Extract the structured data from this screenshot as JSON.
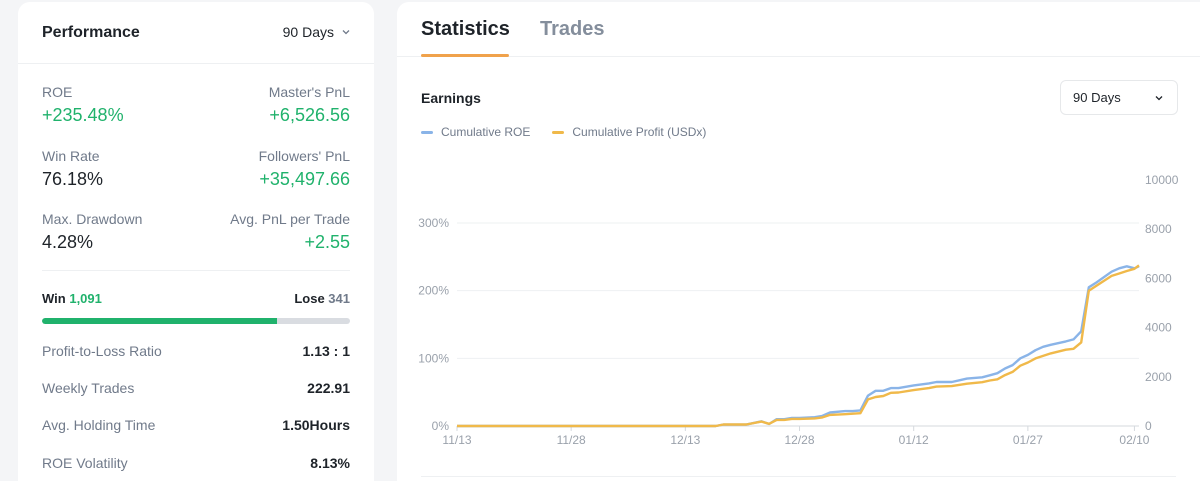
{
  "performance": {
    "title": "Performance",
    "period": "90 Days",
    "stats": {
      "roe_label": "ROE",
      "roe_value": "+235.48%",
      "master_pnl_label": "Master's PnL",
      "master_pnl_value": "+6,526.56",
      "win_rate_label": "Win Rate",
      "win_rate_value": "76.18%",
      "followers_pnl_label": "Followers' PnL",
      "followers_pnl_value": "+35,497.66",
      "max_drawdown_label": "Max. Drawdown",
      "max_drawdown_value": "4.28%",
      "avg_pnl_label": "Avg. PnL per Trade",
      "avg_pnl_value": "+2.55"
    },
    "win_label": "Win",
    "win_count": "1,091",
    "lose_label": "Lose",
    "lose_count": "341",
    "win_fraction": 0.762,
    "rows": [
      {
        "label": "Profit-to-Loss Ratio",
        "value": "1.13 : 1"
      },
      {
        "label": "Weekly Trades",
        "value": "222.91"
      },
      {
        "label": "Avg. Holding Time",
        "value": "1.50Hours"
      },
      {
        "label": "ROE Volatility",
        "value": "8.13%"
      }
    ]
  },
  "tabs": {
    "statistics": "Statistics",
    "trades": "Trades"
  },
  "earnings": {
    "title": "Earnings",
    "period": "90 Days",
    "legend_roe": "Cumulative ROE",
    "legend_profit": "Cumulative Profit (USDx)"
  },
  "colors": {
    "green": "#20b26c",
    "roe_line": "#8ab4e8",
    "profit_line": "#f0b94a",
    "tab_accent": "#f0a24b"
  },
  "chart_data": {
    "type": "line",
    "x_ticks": [
      "11/13",
      "11/28",
      "12/13",
      "12/28",
      "01/12",
      "01/27",
      "02/10"
    ],
    "y_left_ticks": [
      "0%",
      "100%",
      "200%",
      "300%"
    ],
    "y_right_ticks": [
      "0",
      "2000",
      "4000",
      "6000",
      "8000",
      "10000"
    ],
    "y_left_range": [
      0,
      300
    ],
    "y_right_range": [
      0,
      10000
    ],
    "legend_position": "top-left",
    "grid": "horizontal",
    "series": [
      {
        "name": "Cumulative ROE",
        "axis": "left",
        "x": [
          0,
          34,
          35,
          38,
          40,
          41,
          42,
          43,
          44,
          45,
          47,
          48,
          49,
          51,
          52,
          53,
          54,
          55,
          56,
          57,
          58,
          60,
          62,
          63,
          65,
          67,
          69,
          70,
          71,
          72,
          73,
          74,
          75,
          76,
          77,
          78,
          80,
          81,
          82,
          83,
          84,
          86,
          87,
          88,
          89,
          89.6
        ],
        "values": [
          0,
          0,
          2,
          2,
          7,
          3,
          10,
          10,
          12,
          12,
          13,
          15,
          20,
          22,
          22,
          23,
          45,
          52,
          52,
          56,
          56,
          60,
          63,
          65,
          65,
          70,
          72,
          75,
          78,
          85,
          90,
          100,
          105,
          112,
          117,
          120,
          125,
          128,
          140,
          205,
          212,
          228,
          233,
          236,
          233,
          236
        ]
      },
      {
        "name": "Cumulative Profit (USDx)",
        "axis": "right",
        "x": [
          0,
          34,
          35,
          38,
          40,
          41,
          42,
          43,
          44,
          45,
          47,
          48,
          49,
          51,
          52,
          53,
          54,
          55,
          56,
          57,
          58,
          60,
          62,
          63,
          65,
          67,
          69,
          70,
          71,
          72,
          73,
          74,
          75,
          76,
          77,
          78,
          80,
          81,
          82,
          83,
          84,
          86,
          87,
          88,
          89,
          89.6
        ],
        "values": [
          0,
          0,
          60,
          60,
          180,
          90,
          250,
          250,
          290,
          290,
          310,
          350,
          450,
          480,
          500,
          520,
          1080,
          1180,
          1220,
          1350,
          1360,
          1460,
          1540,
          1600,
          1620,
          1720,
          1780,
          1850,
          1900,
          2070,
          2200,
          2450,
          2580,
          2750,
          2850,
          2950,
          3100,
          3140,
          3400,
          5500,
          5700,
          6100,
          6200,
          6300,
          6390,
          6527
        ]
      }
    ]
  }
}
